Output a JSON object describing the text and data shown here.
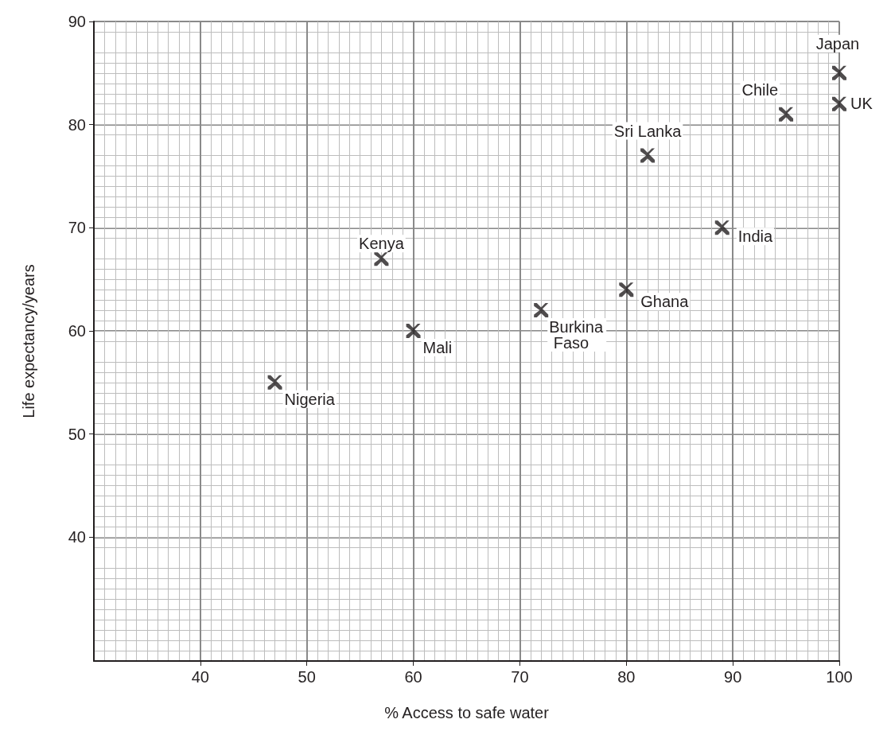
{
  "chart_data": {
    "type": "scatter",
    "xlabel": "% Access to safe water",
    "ylabel": "Life expectancy/years",
    "x": [
      47,
      57,
      60,
      72,
      80,
      82,
      89,
      95,
      100,
      100
    ],
    "values": [
      55,
      67,
      60,
      62,
      64,
      77,
      70,
      81,
      85,
      82
    ],
    "color": "#231f20",
    "marker": "cross",
    "grid": true,
    "xlim": [
      30,
      100
    ],
    "xticks": [
      40,
      50,
      60,
      70,
      80,
      90,
      100
    ],
    "ylim": [
      28,
      90
    ],
    "yticks": [
      40,
      50,
      60,
      70,
      80,
      90
    ],
    "annotations": [
      {
        "text": "Nigeria",
        "x": 47,
        "y": 55
      },
      {
        "text": "Kenya",
        "x": 57,
        "y": 67
      },
      {
        "text": "Mali",
        "x": 60,
        "y": 60
      },
      {
        "text": "Burkina Faso",
        "x": 72,
        "y": 62
      },
      {
        "text": "Ghana",
        "x": 80,
        "y": 64
      },
      {
        "text": "Sri Lanka",
        "x": 82,
        "y": 77
      },
      {
        "text": "India",
        "x": 89,
        "y": 70
      },
      {
        "text": "Chile",
        "x": 95,
        "y": 81
      },
      {
        "text": "Japan",
        "x": 100,
        "y": 85
      },
      {
        "text": "UK",
        "x": 100,
        "y": 82
      }
    ]
  }
}
